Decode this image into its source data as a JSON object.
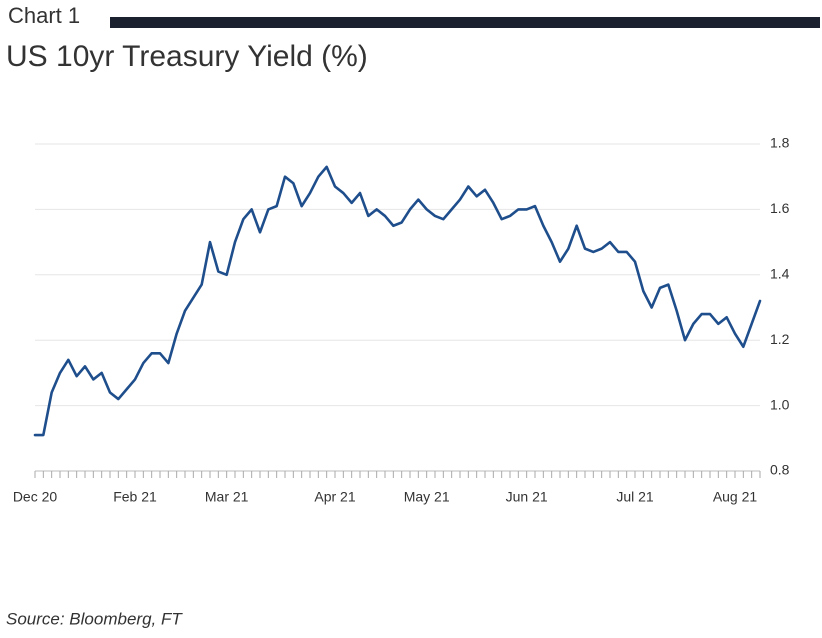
{
  "chart_data": {
    "type": "line",
    "chart_label": "Chart 1",
    "title": "US 10yr Treasury Yield (%)",
    "source": "Source: Bloomberg, FT",
    "categories": [
      "Dec 20",
      null,
      null,
      null,
      null,
      null,
      null,
      null,
      null,
      null,
      null,
      null,
      "Feb 21",
      null,
      null,
      null,
      null,
      null,
      null,
      null,
      null,
      null,
      null,
      "Mar 21",
      null,
      null,
      null,
      null,
      null,
      null,
      null,
      null,
      null,
      null,
      null,
      null,
      "Apr 21",
      null,
      null,
      null,
      null,
      null,
      null,
      null,
      null,
      null,
      null,
      "May 21",
      null,
      null,
      null,
      null,
      null,
      null,
      null,
      null,
      null,
      null,
      null,
      "Jun 21",
      null,
      null,
      null,
      null,
      null,
      null,
      null,
      null,
      null,
      null,
      null,
      null,
      "Jul 21",
      null,
      null,
      null,
      null,
      null,
      null,
      null,
      null,
      null,
      null,
      null,
      "Aug 21",
      null,
      null,
      null
    ],
    "series": [
      {
        "name": "US 10yr Treasury Yield",
        "color": "#1f4e8c",
        "values": [
          0.91,
          0.91,
          1.04,
          1.1,
          1.14,
          1.09,
          1.12,
          1.08,
          1.1,
          1.04,
          1.02,
          1.05,
          1.08,
          1.13,
          1.16,
          1.16,
          1.13,
          1.22,
          1.29,
          1.33,
          1.37,
          1.5,
          1.41,
          1.4,
          1.5,
          1.57,
          1.6,
          1.53,
          1.6,
          1.61,
          1.7,
          1.68,
          1.61,
          1.65,
          1.7,
          1.73,
          1.67,
          1.65,
          1.62,
          1.65,
          1.58,
          1.6,
          1.58,
          1.55,
          1.56,
          1.6,
          1.63,
          1.6,
          1.58,
          1.57,
          1.6,
          1.63,
          1.67,
          1.64,
          1.66,
          1.62,
          1.57,
          1.58,
          1.6,
          1.6,
          1.61,
          1.55,
          1.5,
          1.44,
          1.48,
          1.55,
          1.48,
          1.47,
          1.48,
          1.5,
          1.47,
          1.47,
          1.44,
          1.35,
          1.3,
          1.36,
          1.37,
          1.29,
          1.2,
          1.25,
          1.28,
          1.28,
          1.25,
          1.27,
          1.22,
          1.18,
          1.25,
          1.32
        ]
      }
    ],
    "ylim": [
      0.8,
      1.8
    ],
    "yticks": [
      0.8,
      {
        "value": 1,
        "label": "1.0"
      },
      1.2,
      1.4,
      1.6,
      1.8
    ],
    "grid": true
  }
}
